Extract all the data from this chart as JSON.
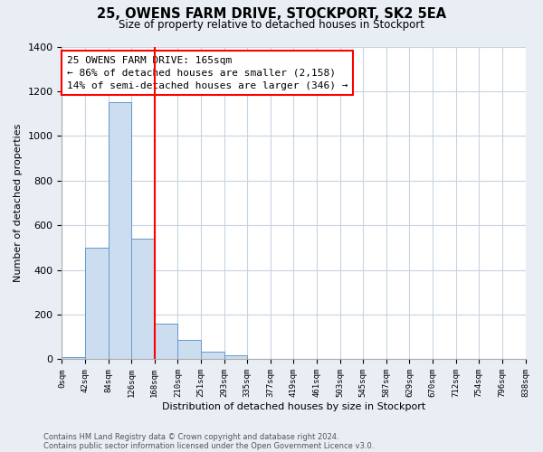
{
  "title": "25, OWENS FARM DRIVE, STOCKPORT, SK2 5EA",
  "subtitle": "Size of property relative to detached houses in Stockport",
  "xlabel": "Distribution of detached houses by size in Stockport",
  "ylabel": "Number of detached properties",
  "bin_labels": [
    "0sqm",
    "42sqm",
    "84sqm",
    "126sqm",
    "168sqm",
    "210sqm",
    "251sqm",
    "293sqm",
    "335sqm",
    "377sqm",
    "419sqm",
    "461sqm",
    "503sqm",
    "545sqm",
    "587sqm",
    "629sqm",
    "670sqm",
    "712sqm",
    "754sqm",
    "796sqm",
    "838sqm"
  ],
  "bar_values": [
    10,
    500,
    1150,
    540,
    160,
    85,
    35,
    20,
    0,
    0,
    0,
    0,
    0,
    0,
    0,
    0,
    0,
    0,
    0,
    0
  ],
  "bar_color": "#ccddf0",
  "bar_edge_color": "#6699cc",
  "marker_bin": 3,
  "marker_label": "25 OWENS FARM DRIVE: 165sqm",
  "annotation_line1": "← 86% of detached houses are smaller (2,158)",
  "annotation_line2": "14% of semi-detached houses are larger (346) →",
  "marker_color": "red",
  "ylim": [
    0,
    1400
  ],
  "yticks": [
    0,
    200,
    400,
    600,
    800,
    1000,
    1200,
    1400
  ],
  "footnote1": "Contains HM Land Registry data © Crown copyright and database right 2024.",
  "footnote2": "Contains public sector information licensed under the Open Government Licence v3.0.",
  "bg_color": "#e8eef4",
  "plot_bg_color": "#ffffff",
  "grid_color": "#c8d4e0"
}
